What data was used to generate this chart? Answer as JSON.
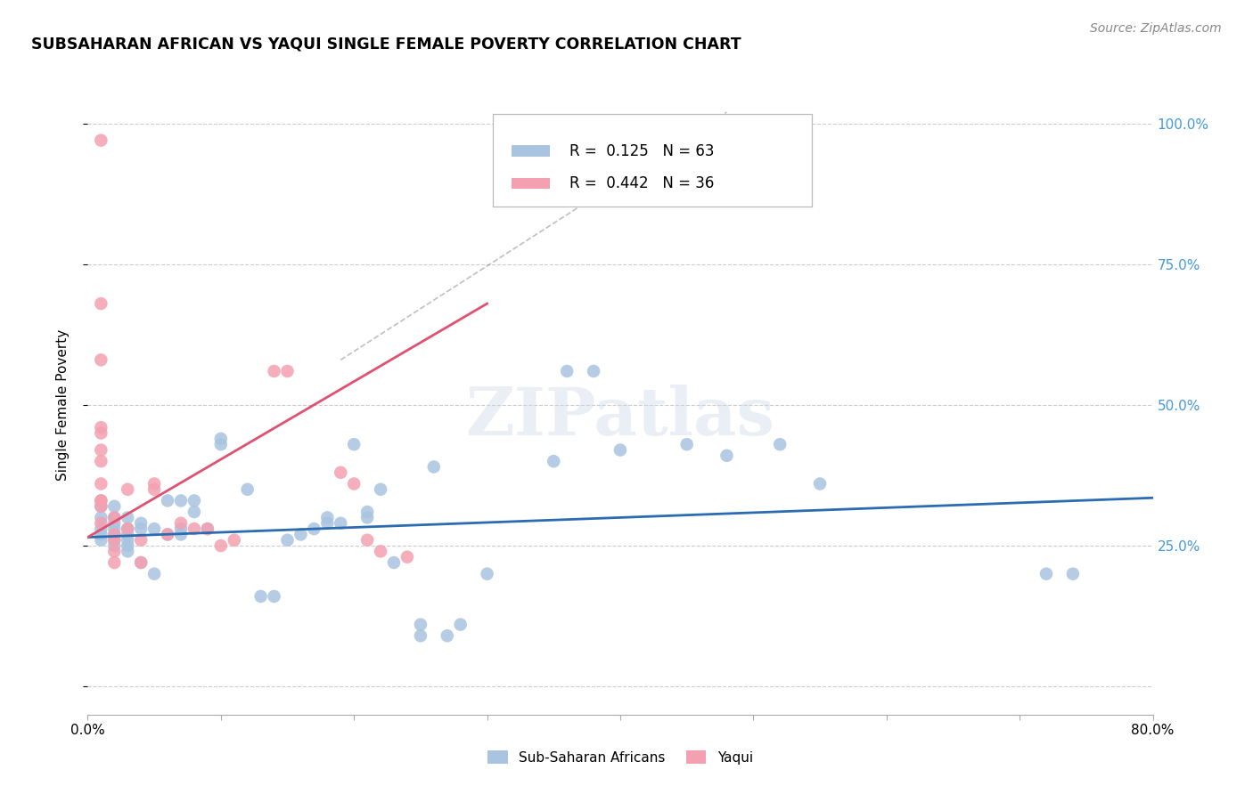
{
  "title": "SUBSAHARAN AFRICAN VS YAQUI SINGLE FEMALE POVERTY CORRELATION CHART",
  "source": "Source: ZipAtlas.com",
  "ylabel": "Single Female Poverty",
  "xlim": [
    0.0,
    0.8
  ],
  "ylim": [
    -0.05,
    1.05
  ],
  "ytick_vals": [
    0.0,
    0.25,
    0.5,
    0.75,
    1.0
  ],
  "ytick_labels": [
    "",
    "25.0%",
    "50.0%",
    "75.0%",
    "100.0%"
  ],
  "xtick_vals": [
    0.0,
    0.1,
    0.2,
    0.3,
    0.4,
    0.5,
    0.6,
    0.7,
    0.8
  ],
  "xtick_labels": [
    "0.0%",
    "",
    "",
    "",
    "",
    "",
    "",
    "",
    "80.0%"
  ],
  "watermark": "ZIPatlas",
  "blue_color": "#a8c4e0",
  "pink_color": "#f4a0b0",
  "blue_line_color": "#2b6cb0",
  "pink_line_color": "#e05070",
  "tick_color": "#4499dd",
  "blue_R": "0.125",
  "blue_N": "63",
  "pink_R": "0.442",
  "pink_N": "36",
  "legend_label_blue": "Sub-Saharan Africans",
  "legend_label_pink": "Yaqui",
  "blue_scatter_x": [
    0.01,
    0.01,
    0.01,
    0.01,
    0.01,
    0.02,
    0.02,
    0.02,
    0.02,
    0.02,
    0.02,
    0.02,
    0.03,
    0.03,
    0.03,
    0.03,
    0.03,
    0.03,
    0.04,
    0.04,
    0.04,
    0.05,
    0.05,
    0.06,
    0.06,
    0.07,
    0.07,
    0.07,
    0.08,
    0.08,
    0.09,
    0.1,
    0.1,
    0.12,
    0.13,
    0.14,
    0.15,
    0.16,
    0.17,
    0.18,
    0.18,
    0.19,
    0.2,
    0.21,
    0.21,
    0.22,
    0.23,
    0.25,
    0.25,
    0.26,
    0.27,
    0.28,
    0.3,
    0.35,
    0.36,
    0.38,
    0.4,
    0.45,
    0.48,
    0.52,
    0.55,
    0.72,
    0.74
  ],
  "blue_scatter_y": [
    0.28,
    0.3,
    0.27,
    0.32,
    0.26,
    0.3,
    0.28,
    0.27,
    0.32,
    0.25,
    0.26,
    0.29,
    0.25,
    0.28,
    0.27,
    0.24,
    0.26,
    0.3,
    0.22,
    0.28,
    0.29,
    0.2,
    0.28,
    0.33,
    0.27,
    0.33,
    0.28,
    0.27,
    0.33,
    0.31,
    0.28,
    0.43,
    0.44,
    0.35,
    0.16,
    0.16,
    0.26,
    0.27,
    0.28,
    0.29,
    0.3,
    0.29,
    0.43,
    0.3,
    0.31,
    0.35,
    0.22,
    0.09,
    0.11,
    0.39,
    0.09,
    0.11,
    0.2,
    0.4,
    0.56,
    0.56,
    0.42,
    0.43,
    0.41,
    0.43,
    0.36,
    0.2,
    0.2
  ],
  "pink_scatter_x": [
    0.01,
    0.01,
    0.01,
    0.01,
    0.01,
    0.01,
    0.01,
    0.01,
    0.01,
    0.01,
    0.01,
    0.01,
    0.02,
    0.02,
    0.02,
    0.02,
    0.02,
    0.03,
    0.03,
    0.04,
    0.04,
    0.05,
    0.05,
    0.06,
    0.07,
    0.08,
    0.09,
    0.1,
    0.11,
    0.14,
    0.15,
    0.19,
    0.2,
    0.21,
    0.22,
    0.24
  ],
  "pink_scatter_y": [
    0.97,
    0.68,
    0.58,
    0.46,
    0.45,
    0.42,
    0.4,
    0.36,
    0.33,
    0.33,
    0.32,
    0.29,
    0.3,
    0.27,
    0.26,
    0.24,
    0.22,
    0.35,
    0.28,
    0.26,
    0.22,
    0.36,
    0.35,
    0.27,
    0.29,
    0.28,
    0.28,
    0.25,
    0.26,
    0.56,
    0.56,
    0.38,
    0.36,
    0.26,
    0.24,
    0.23
  ],
  "blue_line_x": [
    0.0,
    0.8
  ],
  "blue_line_y": [
    0.265,
    0.335
  ],
  "pink_line_x": [
    0.0,
    0.3
  ],
  "pink_line_y": [
    0.265,
    0.68
  ],
  "diag_line_x": [
    0.19,
    0.48
  ],
  "diag_line_y": [
    0.58,
    1.02
  ]
}
